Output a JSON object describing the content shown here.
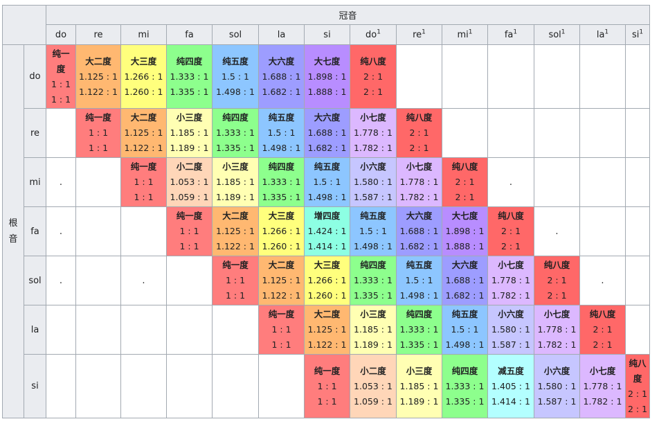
{
  "top_header": "冠音",
  "side_header": "根音",
  "columns": [
    {
      "name": "do",
      "sup": ""
    },
    {
      "name": "re",
      "sup": ""
    },
    {
      "name": "mi",
      "sup": ""
    },
    {
      "name": "fa",
      "sup": ""
    },
    {
      "name": "sol",
      "sup": ""
    },
    {
      "name": "la",
      "sup": ""
    },
    {
      "name": "si",
      "sup": ""
    },
    {
      "name": "do",
      "sup": "1"
    },
    {
      "name": "re",
      "sup": "1"
    },
    {
      "name": "mi",
      "sup": "1"
    },
    {
      "name": "fa",
      "sup": "1"
    },
    {
      "name": "sol",
      "sup": "1"
    },
    {
      "name": "la",
      "sup": "1"
    },
    {
      "name": "si",
      "sup": "1"
    }
  ],
  "rows": [
    {
      "note": "do",
      "cells": [
        {
          "name": "纯一度",
          "r1": "1 : 1",
          "r2": "1 : 1",
          "color": "#ff7d7d"
        },
        {
          "name": "大二度",
          "r1": "1.125 : 1",
          "r2": "1.122 : 1",
          "color": "#ffb871"
        },
        {
          "name": "大三度",
          "r1": "1.266 : 1",
          "r2": "1.260 : 1",
          "color": "#ffff7d"
        },
        {
          "name": "纯四度",
          "r1": "1.333 : 1",
          "r2": "1.335 : 1",
          "color": "#8dff8d"
        },
        {
          "name": "纯五度",
          "r1": "1.5 : 1",
          "r2": "1.498 : 1",
          "color": "#8dc6ff"
        },
        {
          "name": "大六度",
          "r1": "1.688 : 1",
          "r2": "1.682 : 1",
          "color": "#9d9dff"
        },
        {
          "name": "大七度",
          "r1": "1.898 : 1",
          "r2": "1.888 : 1",
          "color": "#b88dff"
        },
        {
          "name": "纯八度",
          "r1": "2 : 1",
          "r2": "2 : 1",
          "color": "#ff6868"
        },
        null,
        null,
        null,
        null,
        null,
        null
      ]
    },
    {
      "note": "re",
      "cells": [
        null,
        {
          "name": "纯一度",
          "r1": "1 : 1",
          "r2": "1 : 1",
          "color": "#ff7d7d"
        },
        {
          "name": "大二度",
          "r1": "1.125 : 1",
          "r2": "1.122 : 1",
          "color": "#ffb871"
        },
        {
          "name": "小三度",
          "r1": "1.185 : 1",
          "r2": "1.189 : 1",
          "color": "#ffffb3"
        },
        {
          "name": "纯四度",
          "r1": "1.333 : 1",
          "r2": "1.335 : 1",
          "color": "#8dff8d"
        },
        {
          "name": "纯五度",
          "r1": "1.5 : 1",
          "r2": "1.498 : 1",
          "color": "#8dc6ff"
        },
        {
          "name": "大六度",
          "r1": "1.688 : 1",
          "r2": "1.682 : 1",
          "color": "#9d9dff"
        },
        {
          "name": "小七度",
          "r1": "1.778 : 1",
          "r2": "1.782 : 1",
          "color": "#dcb8ff"
        },
        {
          "name": "纯八度",
          "r1": "2 : 1",
          "r2": "2 : 1",
          "color": "#ff6868"
        },
        null,
        null,
        null,
        null,
        null
      ]
    },
    {
      "note": "mi",
      "cells": [
        ".",
        null,
        {
          "name": "纯一度",
          "r1": "1 : 1",
          "r2": "1 : 1",
          "color": "#ff7d7d"
        },
        {
          "name": "小二度",
          "r1": "1.053 : 1",
          "r2": "1.059 : 1",
          "color": "#ffd6b8"
        },
        {
          "name": "小三度",
          "r1": "1.185 : 1",
          "r2": "1.189 : 1",
          "color": "#ffffb3"
        },
        {
          "name": "纯四度",
          "r1": "1.333 : 1",
          "r2": "1.335 : 1",
          "color": "#8dff8d"
        },
        {
          "name": "纯五度",
          "r1": "1.5 : 1",
          "r2": "1.498 : 1",
          "color": "#8dc6ff"
        },
        {
          "name": "小六度",
          "r1": "1.580 : 1",
          "r2": "1.587 : 1",
          "color": "#c6c6ff"
        },
        {
          "name": "小七度",
          "r1": "1.778 : 1",
          "r2": "1.782 : 1",
          "color": "#dcb8ff"
        },
        {
          "name": "纯八度",
          "r1": "2 : 1",
          "r2": "2 : 1",
          "color": "#ff6868"
        },
        ".",
        null,
        null,
        null
      ]
    },
    {
      "note": "fa",
      "cells": [
        ".",
        null,
        null,
        {
          "name": "纯一度",
          "r1": "1 : 1",
          "r2": "1 : 1",
          "color": "#ff7d7d"
        },
        {
          "name": "大二度",
          "r1": "1.125 : 1",
          "r2": "1.122 : 1",
          "color": "#ffb871"
        },
        {
          "name": "大三度",
          "r1": "1.266 : 1",
          "r2": "1.260 : 1",
          "color": "#ffff7d"
        },
        {
          "name": "增四度",
          "r1": "1.424 : 1",
          "r2": "1.414 : 1",
          "color": "#8dffe3"
        },
        {
          "name": "纯五度",
          "r1": "1.5 : 1",
          "r2": "1.498 : 1",
          "color": "#8dc6ff"
        },
        {
          "name": "大六度",
          "r1": "1.688 : 1",
          "r2": "1.682 : 1",
          "color": "#9d9dff"
        },
        {
          "name": "大七度",
          "r1": "1.898 : 1",
          "r2": "1.888 : 1",
          "color": "#b88dff"
        },
        {
          "name": "纯八度",
          "r1": "2 : 1",
          "r2": "2 : 1",
          "color": "#ff6868"
        },
        ".",
        null,
        null
      ]
    },
    {
      "note": "sol",
      "cells": [
        ".",
        null,
        ".",
        null,
        {
          "name": "纯一度",
          "r1": "1 : 1",
          "r2": "1 : 1",
          "color": "#ff7d7d"
        },
        {
          "name": "大二度",
          "r1": "1.125 : 1",
          "r2": "1.122 : 1",
          "color": "#ffb871"
        },
        {
          "name": "大三度",
          "r1": "1.266 : 1",
          "r2": "1.260 : 1",
          "color": "#ffff7d"
        },
        {
          "name": "纯四度",
          "r1": "1.333 : 1",
          "r2": "1.335 : 1",
          "color": "#8dff8d"
        },
        {
          "name": "纯五度",
          "r1": "1.5 : 1",
          "r2": "1.498 : 1",
          "color": "#8dc6ff"
        },
        {
          "name": "大六度",
          "r1": "1.688 : 1",
          "r2": "1.682 : 1",
          "color": "#9d9dff"
        },
        {
          "name": "小七度",
          "r1": "1.778 : 1",
          "r2": "1.782 : 1",
          "color": "#dcb8ff"
        },
        {
          "name": "纯八度",
          "r1": "2 : 1",
          "r2": "2 : 1",
          "color": "#ff6868"
        },
        ".",
        null
      ]
    },
    {
      "note": "la",
      "cells": [
        null,
        null,
        null,
        null,
        null,
        {
          "name": "纯一度",
          "r1": "1 : 1",
          "r2": "1 : 1",
          "color": "#ff7d7d"
        },
        {
          "name": "大二度",
          "r1": "1.125 : 1",
          "r2": "1.122 : 1",
          "color": "#ffb871"
        },
        {
          "name": "小三度",
          "r1": "1.185 : 1",
          "r2": "1.189 : 1",
          "color": "#ffffb3"
        },
        {
          "name": "纯四度",
          "r1": "1.333 : 1",
          "r2": "1.335 : 1",
          "color": "#8dff8d"
        },
        {
          "name": "纯五度",
          "r1": "1.5 : 1",
          "r2": "1.498 : 1",
          "color": "#8dc6ff"
        },
        {
          "name": "小六度",
          "r1": "1.580 : 1",
          "r2": "1.587 : 1",
          "color": "#c6c6ff"
        },
        {
          "name": "小七度",
          "r1": "1.778 : 1",
          "r2": "1.782 : 1",
          "color": "#dcb8ff"
        },
        {
          "name": "纯八度",
          "r1": "2 : 1",
          "r2": "2 : 1",
          "color": "#ff6868"
        },
        null
      ]
    },
    {
      "note": "si",
      "cells": [
        null,
        null,
        null,
        null,
        null,
        null,
        {
          "name": "纯一度",
          "r1": "1 : 1",
          "r2": "1 : 1",
          "color": "#ff7d7d"
        },
        {
          "name": "小二度",
          "r1": "1.053 : 1",
          "r2": "1.059 : 1",
          "color": "#ffd6b8"
        },
        {
          "name": "小三度",
          "r1": "1.185 : 1",
          "r2": "1.189 : 1",
          "color": "#ffffb3"
        },
        {
          "name": "纯四度",
          "r1": "1.333 : 1",
          "r2": "1.335 : 1",
          "color": "#8dff8d"
        },
        {
          "name": "减五度",
          "r1": "1.405 : 1",
          "r2": "1.414 : 1",
          "color": "#b3ffff"
        },
        {
          "name": "小六度",
          "r1": "1.580 : 1",
          "r2": "1.587 : 1",
          "color": "#c6c6ff"
        },
        {
          "name": "小七度",
          "r1": "1.778 : 1",
          "r2": "1.782 : 1",
          "color": "#dcb8ff"
        },
        {
          "name": "纯八度",
          "r1": "2 : 1",
          "r2": "2 : 1",
          "color": "#ff6868"
        }
      ]
    }
  ]
}
